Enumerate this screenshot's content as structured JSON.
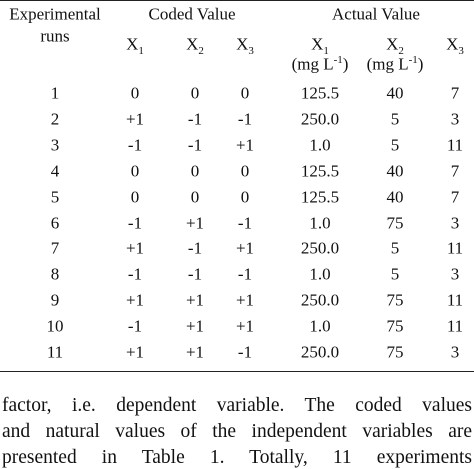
{
  "table": {
    "header": {
      "runs": [
        "Experimental",
        "runs"
      ],
      "coded": "Coded Value",
      "actual": "Actual Value",
      "columns": [
        {
          "name": "X",
          "sub": "1"
        },
        {
          "name": "X",
          "sub": "2"
        },
        {
          "name": "X",
          "sub": "3"
        },
        {
          "name": "X",
          "sub": "1",
          "unit": {
            "open": "(mg L",
            "sup": "-1",
            "close": ")"
          }
        },
        {
          "name": "X",
          "sub": "2",
          "unit": {
            "open": "(mg L",
            "sup": "-1",
            "close": ")"
          }
        },
        {
          "name": "X",
          "sub": "3"
        }
      ]
    },
    "rows": [
      [
        "1",
        "0",
        "0",
        "0",
        "125.5",
        "40",
        "7"
      ],
      [
        "2",
        "+1",
        "-1",
        "-1",
        "250.0",
        "5",
        "3"
      ],
      [
        "3",
        "-1",
        "-1",
        "+1",
        "1.0",
        "5",
        "11"
      ],
      [
        "4",
        "0",
        "0",
        "0",
        "125.5",
        "40",
        "7"
      ],
      [
        "5",
        "0",
        "0",
        "0",
        "125.5",
        "40",
        "7"
      ],
      [
        "6",
        "-1",
        "+1",
        "-1",
        "1.0",
        "75",
        "3"
      ],
      [
        "7",
        "+1",
        "-1",
        "+1",
        "250.0",
        "5",
        "11"
      ],
      [
        "8",
        "-1",
        "-1",
        "-1",
        "1.0",
        "5",
        "3"
      ],
      [
        "9",
        "+1",
        "+1",
        "+1",
        "250.0",
        "75",
        "11"
      ],
      [
        "10",
        "-1",
        "+1",
        "+1",
        "1.0",
        "75",
        "11"
      ],
      [
        "11",
        "+1",
        "+1",
        "-1",
        "250.0",
        "75",
        "3"
      ]
    ]
  },
  "paragraph": [
    "factor, i.e. dependent variable. The coded values",
    "and natural values of the independent variables are",
    "presented in Table 1. Totally, 11 experiments"
  ]
}
